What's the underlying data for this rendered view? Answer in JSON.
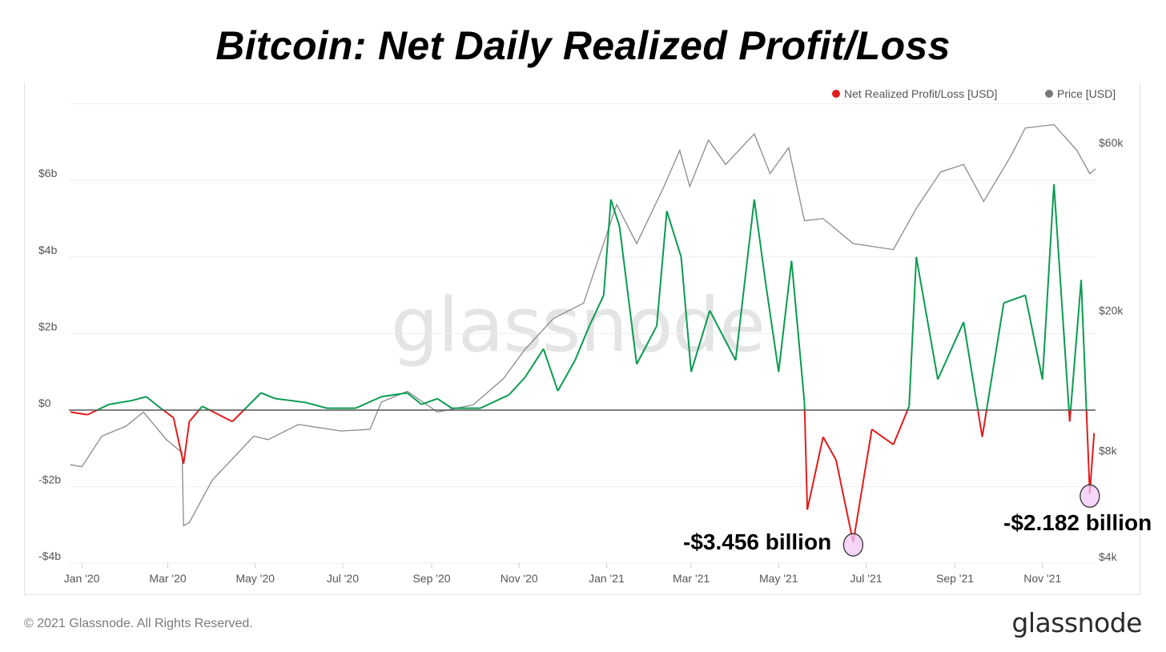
{
  "title": "Bitcoin: Net Daily Realized Profit/Loss",
  "footer": {
    "copyright": "© 2021 Glassnode. All Rights Reserved.",
    "brand": "glassnode"
  },
  "watermark": "glassnode",
  "annotations": [
    {
      "text": "-$3.456 billion",
      "value": -3.456,
      "date": "2021-06-22"
    },
    {
      "text": "-$2.182 billion",
      "value": -2.182,
      "date": "2021-12-04"
    }
  ],
  "colors": {
    "profit": "#0a9b50",
    "loss": "#e31b1b",
    "price": "#8a8a8a",
    "zero_line": "#555555",
    "highlight": "#f2c8f5"
  },
  "chart_data": {
    "type": "line",
    "title": "Bitcoin: Net Daily Realized Profit/Loss",
    "legend": [
      "Net Realized Profit/Loss [USD]",
      "Price [USD]"
    ],
    "legend_placement": "top-right",
    "grid": true,
    "x_range": [
      "2019-12-23",
      "2021-12-08"
    ],
    "x_ticks": [
      "Jan '20",
      "Mar '20",
      "May '20",
      "Jul '20",
      "Sep '20",
      "Nov '20",
      "Jan '21",
      "Mar '21",
      "May '21",
      "Jul '21",
      "Sep '21",
      "Nov '21"
    ],
    "y_left": {
      "ticks": [
        "$6b",
        "$4b",
        "$2b",
        "$0",
        "-$2b",
        "-$4b"
      ],
      "tick_values": [
        6,
        4,
        2,
        0,
        -2,
        -4
      ],
      "range": [
        -4,
        8
      ],
      "unit": "USD billions"
    },
    "y_right": {
      "ticks": [
        "$60k",
        "$20k",
        "$8k",
        "$4k"
      ],
      "tick_values": [
        60000,
        20000,
        8000,
        4000
      ],
      "scale": "log",
      "unit": "USD"
    },
    "series": [
      {
        "name": "Net Realized Profit/Loss [USD]",
        "axis": "left",
        "points": [
          [
            "2019-12-24",
            -0.05
          ],
          [
            "2020-01-05",
            -0.12
          ],
          [
            "2020-01-20",
            0.15
          ],
          [
            "2020-02-05",
            0.25
          ],
          [
            "2020-02-15",
            0.35
          ],
          [
            "2020-02-25",
            0.05
          ],
          [
            "2020-03-05",
            -0.2
          ],
          [
            "2020-03-12",
            -1.4
          ],
          [
            "2020-03-16",
            -0.3
          ],
          [
            "2020-03-25",
            0.1
          ],
          [
            "2020-04-15",
            -0.3
          ],
          [
            "2020-05-05",
            0.45
          ],
          [
            "2020-05-15",
            0.3
          ],
          [
            "2020-06-05",
            0.2
          ],
          [
            "2020-06-20",
            0.05
          ],
          [
            "2020-07-10",
            0.05
          ],
          [
            "2020-07-28",
            0.35
          ],
          [
            "2020-08-15",
            0.45
          ],
          [
            "2020-08-25",
            0.15
          ],
          [
            "2020-09-05",
            0.3
          ],
          [
            "2020-09-15",
            0.05
          ],
          [
            "2020-10-05",
            0.05
          ],
          [
            "2020-10-25",
            0.4
          ],
          [
            "2020-11-05",
            0.85
          ],
          [
            "2020-11-18",
            1.6
          ],
          [
            "2020-11-28",
            0.5
          ],
          [
            "2020-12-10",
            1.3
          ],
          [
            "2020-12-20",
            2.2
          ],
          [
            "2020-12-30",
            3.0
          ],
          [
            "2021-01-04",
            5.5
          ],
          [
            "2021-01-10",
            4.8
          ],
          [
            "2021-01-22",
            1.2
          ],
          [
            "2021-02-05",
            2.2
          ],
          [
            "2021-02-12",
            5.2
          ],
          [
            "2021-02-22",
            4.0
          ],
          [
            "2021-03-01",
            1.0
          ],
          [
            "2021-03-14",
            2.6
          ],
          [
            "2021-04-01",
            1.3
          ],
          [
            "2021-04-14",
            5.5
          ],
          [
            "2021-04-22",
            3.3
          ],
          [
            "2021-05-01",
            1.0
          ],
          [
            "2021-05-10",
            3.9
          ],
          [
            "2021-05-19",
            0.2
          ],
          [
            "2021-05-21",
            -2.6
          ],
          [
            "2021-06-01",
            -0.7
          ],
          [
            "2021-06-10",
            -1.3
          ],
          [
            "2021-06-22",
            -3.456
          ],
          [
            "2021-07-05",
            -0.5
          ],
          [
            "2021-07-20",
            -0.9
          ],
          [
            "2021-07-31",
            0.1
          ],
          [
            "2021-08-05",
            4.0
          ],
          [
            "2021-08-20",
            0.8
          ],
          [
            "2021-09-07",
            2.3
          ],
          [
            "2021-09-20",
            -0.7
          ],
          [
            "2021-10-05",
            2.8
          ],
          [
            "2021-10-20",
            3.0
          ],
          [
            "2021-11-01",
            0.8
          ],
          [
            "2021-11-09",
            5.9
          ],
          [
            "2021-11-20",
            -0.3
          ],
          [
            "2021-11-28",
            3.4
          ],
          [
            "2021-12-04",
            -2.182
          ],
          [
            "2021-12-07",
            -0.6
          ]
        ]
      },
      {
        "name": "Price [USD]",
        "axis": "right",
        "points": [
          [
            "2019-12-24",
            7300
          ],
          [
            "2020-01-01",
            7200
          ],
          [
            "2020-01-15",
            8800
          ],
          [
            "2020-02-01",
            9400
          ],
          [
            "2020-02-13",
            10300
          ],
          [
            "2020-02-29",
            8600
          ],
          [
            "2020-03-11",
            7900
          ],
          [
            "2020-03-12",
            4900
          ],
          [
            "2020-03-16",
            5000
          ],
          [
            "2020-04-01",
            6600
          ],
          [
            "2020-04-30",
            8800
          ],
          [
            "2020-05-10",
            8600
          ],
          [
            "2020-05-31",
            9500
          ],
          [
            "2020-06-30",
            9100
          ],
          [
            "2020-07-20",
            9200
          ],
          [
            "2020-07-28",
            11000
          ],
          [
            "2020-08-15",
            11800
          ],
          [
            "2020-09-05",
            10300
          ],
          [
            "2020-09-30",
            10800
          ],
          [
            "2020-10-21",
            12800
          ],
          [
            "2020-11-05",
            15500
          ],
          [
            "2020-11-25",
            19000
          ],
          [
            "2020-12-16",
            21000
          ],
          [
            "2021-01-08",
            40000
          ],
          [
            "2021-01-22",
            31000
          ],
          [
            "2021-02-10",
            45000
          ],
          [
            "2021-02-21",
            57000
          ],
          [
            "2021-02-28",
            45000
          ],
          [
            "2021-03-13",
            61000
          ],
          [
            "2021-03-25",
            52000
          ],
          [
            "2021-04-14",
            63500
          ],
          [
            "2021-04-25",
            49000
          ],
          [
            "2021-05-08",
            58000
          ],
          [
            "2021-05-19",
            36000
          ],
          [
            "2021-06-01",
            36500
          ],
          [
            "2021-06-22",
            31000
          ],
          [
            "2021-07-20",
            29800
          ],
          [
            "2021-08-05",
            39000
          ],
          [
            "2021-08-22",
            49500
          ],
          [
            "2021-09-07",
            52000
          ],
          [
            "2021-09-21",
            40800
          ],
          [
            "2021-10-10",
            55000
          ],
          [
            "2021-10-20",
            66000
          ],
          [
            "2021-11-09",
            67500
          ],
          [
            "2021-11-25",
            57000
          ],
          [
            "2021-12-04",
            49000
          ],
          [
            "2021-12-08",
            50500
          ]
        ]
      }
    ]
  }
}
